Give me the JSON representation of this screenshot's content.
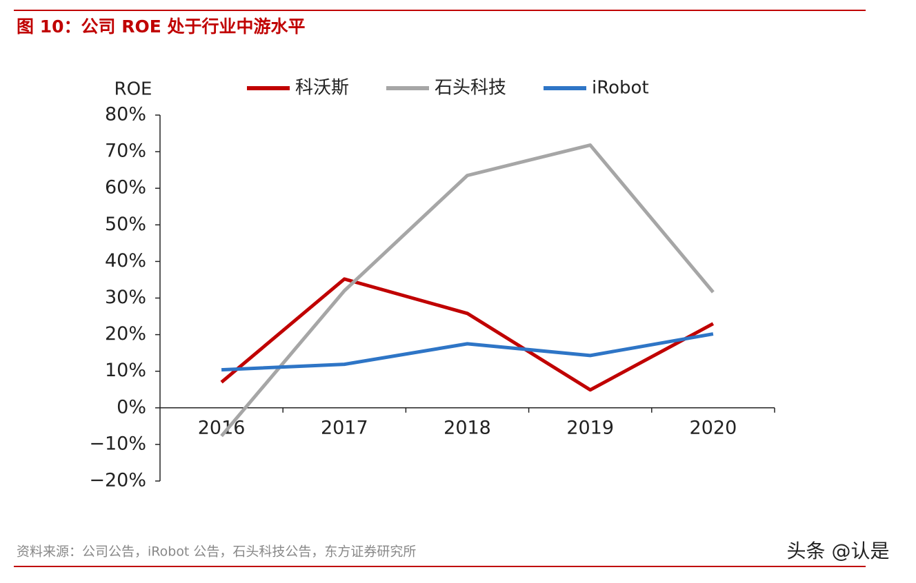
{
  "header": {
    "title": "图 10：公司 ROE 处于行业中游水平"
  },
  "chart_data": {
    "type": "line",
    "y_label": "ROE",
    "categories": [
      "2016",
      "2017",
      "2018",
      "2019",
      "2020"
    ],
    "series": [
      {
        "name": "科沃斯",
        "color": "#c00000",
        "values": [
          7.0,
          35.2,
          25.8,
          4.9,
          23.0
        ]
      },
      {
        "name": "石头科技",
        "color": "#a6a6a6",
        "values": [
          -7.7,
          32.0,
          63.5,
          71.8,
          31.6
        ]
      },
      {
        "name": "iRobot",
        "color": "#2e75c6",
        "values": [
          10.4,
          11.9,
          17.5,
          14.3,
          20.2
        ]
      }
    ],
    "ylim": [
      -20,
      80
    ],
    "yticks": [
      {
        "value": 80,
        "label": "80%"
      },
      {
        "value": 70,
        "label": "70%"
      },
      {
        "value": 60,
        "label": "60%"
      },
      {
        "value": 50,
        "label": "50%"
      },
      {
        "value": 40,
        "label": "40%"
      },
      {
        "value": 30,
        "label": "30%"
      },
      {
        "value": 20,
        "label": "20%"
      },
      {
        "value": 10,
        "label": "10%"
      },
      {
        "value": 0,
        "label": "0%"
      },
      {
        "value": -10,
        "label": "−10%"
      },
      {
        "value": -20,
        "label": "−20%"
      }
    ],
    "grid": false
  },
  "footer": {
    "source": "资料来源：公司公告，iRobot 公告，石头科技公告，东方证券研究所",
    "watermark": "头条 @认是"
  }
}
